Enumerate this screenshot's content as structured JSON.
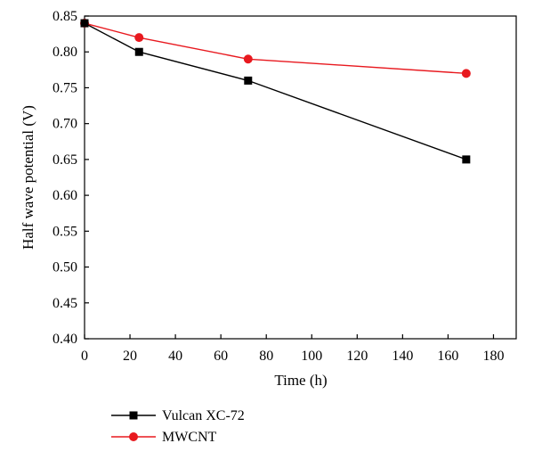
{
  "chart_data": {
    "type": "line",
    "title": "",
    "xlabel": "Time (h)",
    "ylabel": "Half wave potential (V)",
    "xlim": [
      0,
      190
    ],
    "ylim": [
      0.4,
      0.85
    ],
    "xticks": [
      "0",
      "20",
      "40",
      "60",
      "80",
      "100",
      "120",
      "140",
      "160",
      "180"
    ],
    "yticks": [
      "0.40",
      "0.45",
      "0.50",
      "0.55",
      "0.60",
      "0.65",
      "0.70",
      "0.75",
      "0.80",
      "0.85"
    ],
    "grid": false,
    "legend_position": "bottom-left",
    "series": [
      {
        "name": "Vulcan XC-72",
        "color": "#000000",
        "marker": "square",
        "x": [
          0,
          24,
          72,
          168
        ],
        "y": [
          0.84,
          0.8,
          0.76,
          0.65
        ]
      },
      {
        "name": "MWCNT",
        "color": "#e8191f",
        "marker": "circle",
        "x": [
          0,
          24,
          72,
          168
        ],
        "y": [
          0.84,
          0.82,
          0.79,
          0.77
        ]
      }
    ]
  }
}
